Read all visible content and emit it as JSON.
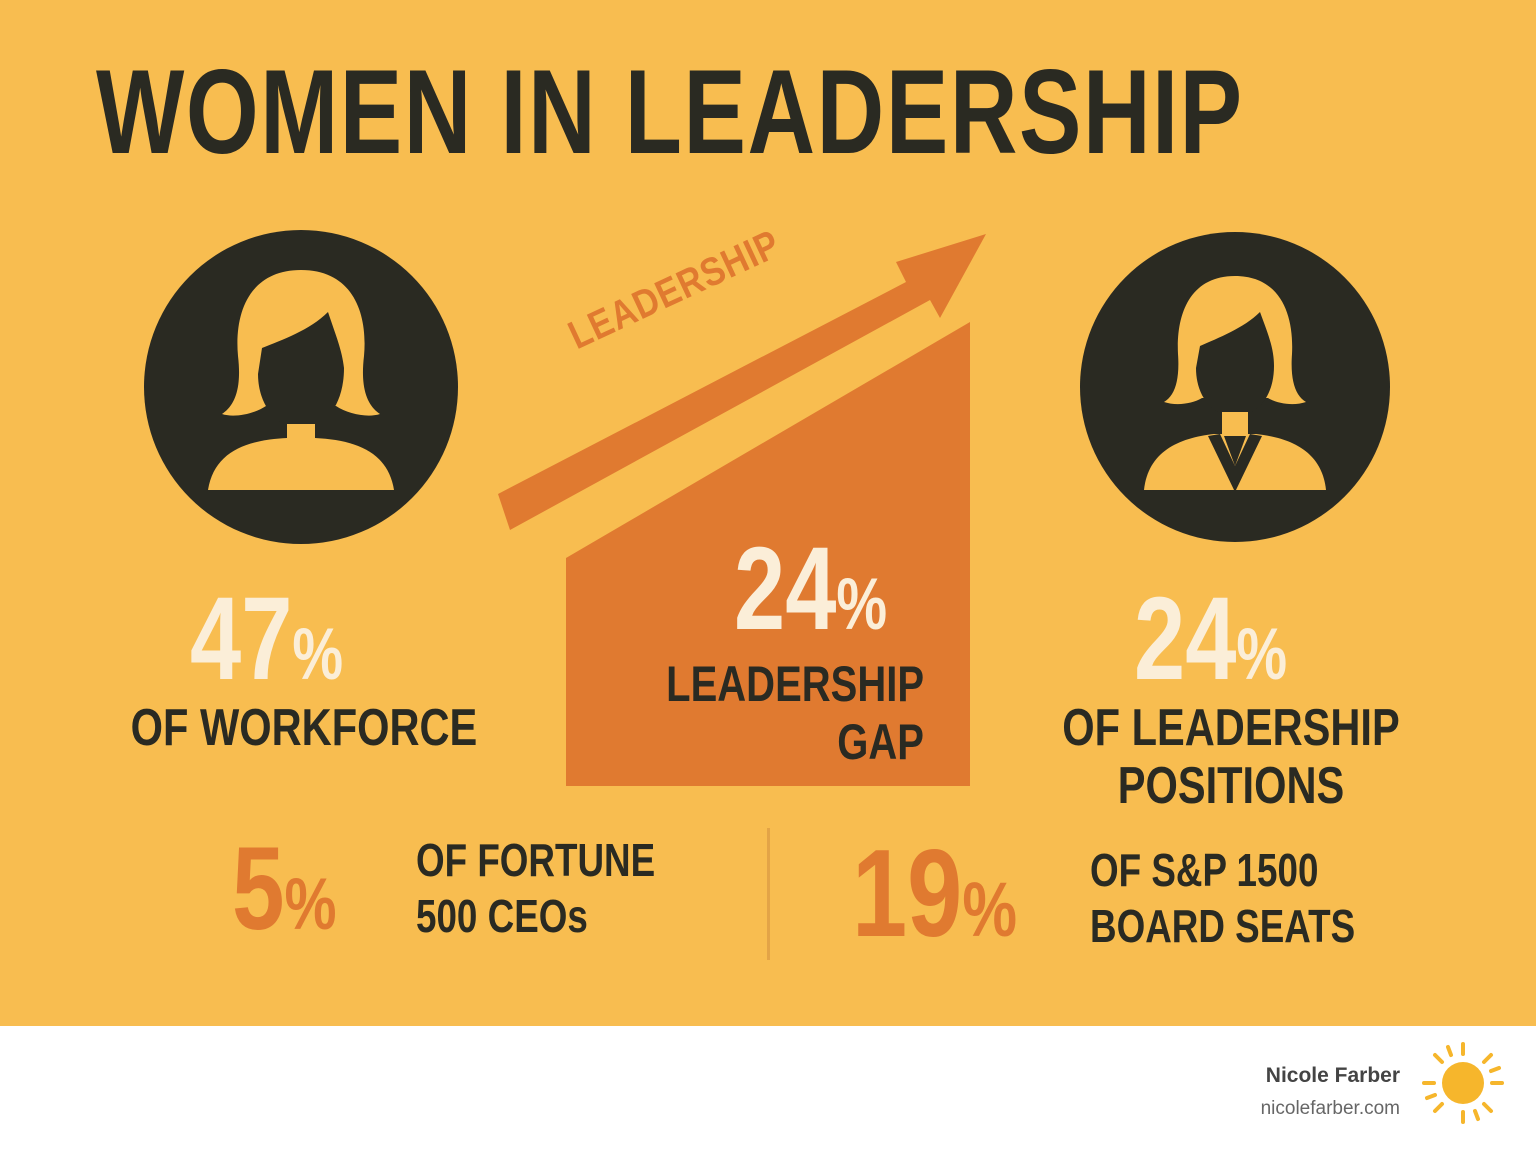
{
  "title": "WOMEN IN LEADERSHIP",
  "arrow_label": "LEADERSHIP",
  "stats": {
    "workforce": {
      "number": "47",
      "percent": "%",
      "label": "OF WORKFORCE"
    },
    "gap": {
      "number": "24",
      "percent": "%",
      "label_line1": "LEADERSHIP",
      "label_line2": "GAP"
    },
    "leadership": {
      "number": "24",
      "percent": "%",
      "label_line1": "OF LEADERSHIP",
      "label_line2": "POSITIONS"
    },
    "ceos": {
      "number": "5",
      "percent": "%",
      "label_line1": "OF FORTUNE",
      "label_line2": "500 CEOs"
    },
    "board": {
      "number": "19",
      "percent": "%",
      "label_line1": "OF S&P 1500",
      "label_line2": "BOARD SEATS"
    }
  },
  "footer": {
    "name": "Nicole Farber",
    "url": "nicolefarber.com"
  },
  "icons": {
    "left_avatar": "woman-icon",
    "right_avatar": "businesswoman-icon",
    "arrow": "trend-arrow-icon",
    "logo": "sun-icon"
  },
  "colors": {
    "background": "#f8bd50",
    "dark": "#2a2a22",
    "orange": "#e07a30",
    "cream": "#fbeed8"
  }
}
